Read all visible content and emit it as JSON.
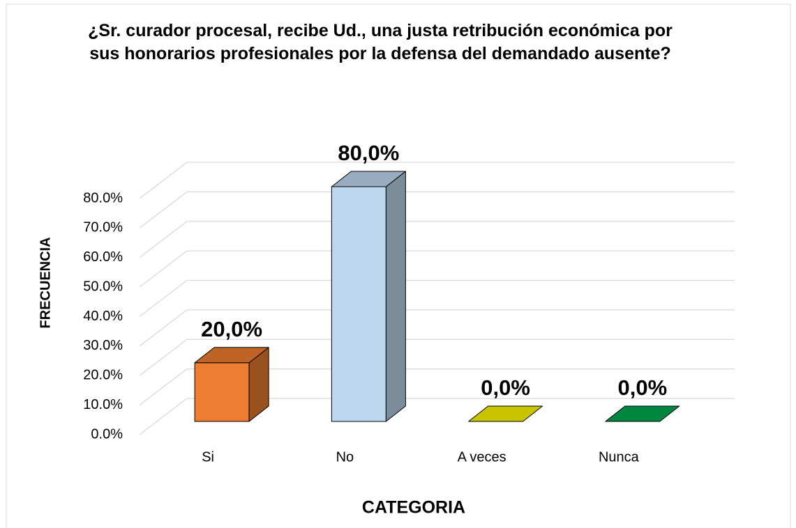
{
  "chart_data": {
    "type": "bar3d",
    "title": "¿Sr. curador procesal, recibe Ud., una justa retribución económica por sus honorarios profesionales por la defensa del demandado ausente?",
    "x_label": "CATEGORIA",
    "y_label": "FRECUENCIA",
    "categories": [
      "Si",
      "No",
      "A veces",
      "Nunca"
    ],
    "values": [
      20,
      80,
      0,
      0
    ],
    "value_labels": [
      "20,0%",
      "80,0%",
      "0,0%",
      "0,0%"
    ],
    "colors": [
      "#ED7D31",
      "#BDD7EE",
      "#C9C400",
      "#00863F"
    ],
    "ylim": [
      0,
      80
    ],
    "yticks": [
      {
        "value": 0,
        "label": "0.0%"
      },
      {
        "value": 10,
        "label": "10.0%"
      },
      {
        "value": 20,
        "label": "20.0%"
      },
      {
        "value": 30,
        "label": "30.0%"
      },
      {
        "value": 40,
        "label": "40.0%"
      },
      {
        "value": 50,
        "label": "50.0%"
      },
      {
        "value": 60,
        "label": "60.0%"
      },
      {
        "value": 70,
        "label": "70.0%"
      },
      {
        "value": 80,
        "label": "80.0%"
      }
    ],
    "grid": true
  }
}
